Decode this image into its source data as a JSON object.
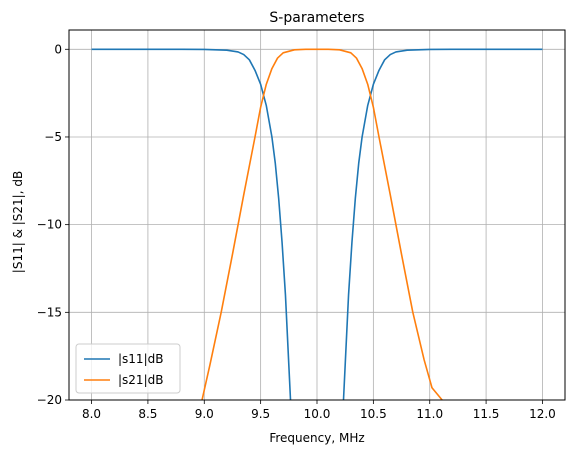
{
  "chart_data": {
    "type": "line",
    "title": "S-parameters",
    "xlabel": "Frequency, MHz",
    "ylabel": "|S11| & |S21|, dB",
    "xlim": [
      7.8,
      12.2
    ],
    "ylim": [
      -20,
      1.1
    ],
    "xticks": [
      8.0,
      8.5,
      9.0,
      9.5,
      10.0,
      10.5,
      11.0,
      11.5,
      12.0
    ],
    "xtick_labels": [
      "8.0",
      "8.5",
      "9.0",
      "9.5",
      "10.0",
      "10.5",
      "11.0",
      "11.5",
      "12.0"
    ],
    "yticks": [
      0,
      -5,
      -10,
      -15,
      -20
    ],
    "ytick_labels": [
      "0",
      "−5",
      "−10",
      "−15",
      "−20"
    ],
    "grid": true,
    "legend_position": "lower-left",
    "series": [
      {
        "name": "|s11|dB",
        "color": "#1f77b4",
        "points": [
          [
            8.0,
            0.0
          ],
          [
            8.5,
            0.0
          ],
          [
            8.8,
            0.0
          ],
          [
            9.0,
            -0.01
          ],
          [
            9.2,
            -0.05
          ],
          [
            9.3,
            -0.15
          ],
          [
            9.35,
            -0.3
          ],
          [
            9.4,
            -0.6
          ],
          [
            9.45,
            -1.2
          ],
          [
            9.5,
            -2.0
          ],
          [
            9.55,
            -3.2
          ],
          [
            9.6,
            -5.0
          ],
          [
            9.63,
            -6.5
          ],
          [
            9.66,
            -8.5
          ],
          [
            9.69,
            -11.0
          ],
          [
            9.72,
            -14.0
          ],
          [
            9.75,
            -18.0
          ],
          [
            9.765,
            -20.0
          ]
        ],
        "points_b": [
          [
            10.235,
            -20.0
          ],
          [
            10.25,
            -18.0
          ],
          [
            10.28,
            -14.0
          ],
          [
            10.31,
            -11.0
          ],
          [
            10.34,
            -8.5
          ],
          [
            10.37,
            -6.5
          ],
          [
            10.4,
            -5.0
          ],
          [
            10.45,
            -3.2
          ],
          [
            10.5,
            -2.0
          ],
          [
            10.55,
            -1.2
          ],
          [
            10.6,
            -0.6
          ],
          [
            10.65,
            -0.3
          ],
          [
            10.7,
            -0.15
          ],
          [
            10.8,
            -0.05
          ],
          [
            11.0,
            -0.01
          ],
          [
            11.2,
            0.0
          ],
          [
            11.5,
            0.0
          ],
          [
            12.0,
            0.0
          ]
        ]
      },
      {
        "name": "|s21|dB",
        "color": "#ff7f0e",
        "points": [
          [
            8.98,
            -20.0
          ],
          [
            9.05,
            -18.0
          ],
          [
            9.15,
            -15.0
          ],
          [
            9.25,
            -11.7
          ],
          [
            9.35,
            -8.3
          ],
          [
            9.45,
            -5.0
          ],
          [
            9.5,
            -3.3
          ],
          [
            9.55,
            -2.0
          ],
          [
            9.6,
            -1.1
          ],
          [
            9.65,
            -0.5
          ],
          [
            9.7,
            -0.2
          ],
          [
            9.8,
            -0.03
          ],
          [
            9.9,
            0.0
          ],
          [
            10.0,
            0.0
          ],
          [
            10.1,
            0.0
          ],
          [
            10.2,
            -0.03
          ],
          [
            10.3,
            -0.2
          ],
          [
            10.35,
            -0.5
          ],
          [
            10.4,
            -1.1
          ],
          [
            10.45,
            -2.0
          ],
          [
            10.5,
            -3.3
          ],
          [
            10.55,
            -5.0
          ],
          [
            10.65,
            -8.3
          ],
          [
            10.75,
            -11.7
          ],
          [
            10.85,
            -15.0
          ],
          [
            10.95,
            -17.7
          ],
          [
            11.02,
            -19.3
          ],
          [
            11.11,
            -20.0
          ]
        ]
      }
    ]
  }
}
